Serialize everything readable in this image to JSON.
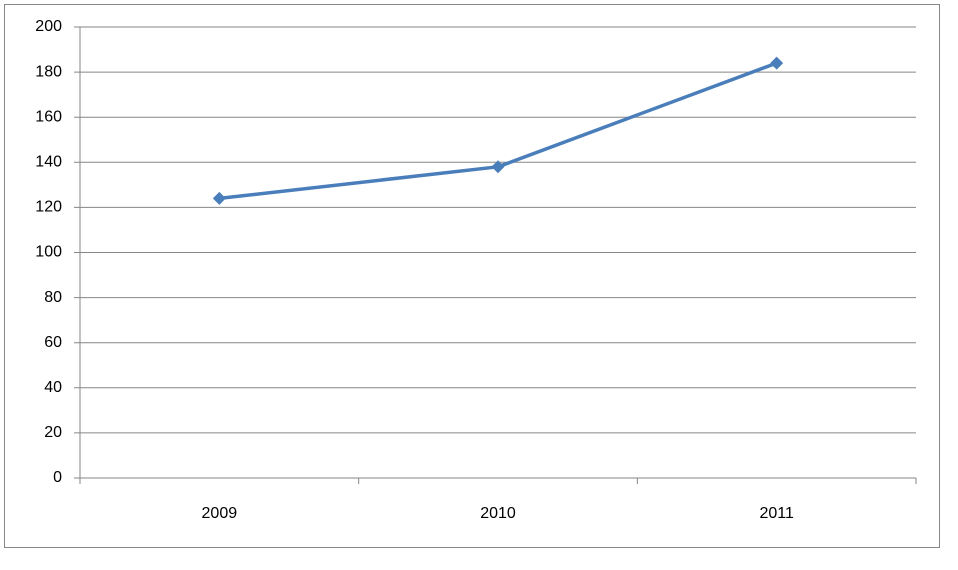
{
  "chart_data": {
    "type": "line",
    "categories": [
      "2009",
      "2010",
      "2011"
    ],
    "values": [
      124,
      138,
      184
    ],
    "color": "#4a7ebb",
    "marker": "diamond",
    "ylim": [
      0,
      200
    ],
    "yticks": [
      0,
      20,
      40,
      60,
      80,
      100,
      120,
      140,
      160,
      180,
      200
    ],
    "grid": true
  }
}
